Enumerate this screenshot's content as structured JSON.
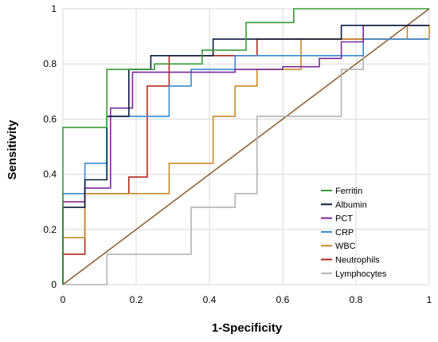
{
  "chart_data": {
    "type": "line",
    "xlabel": "1-Specificity",
    "ylabel": "Sensitivity",
    "xlim": [
      0,
      1
    ],
    "ylim": [
      0,
      1
    ],
    "x_ticks": [
      "0",
      "0.2",
      "0.4",
      "0.6",
      "0.8",
      "1"
    ],
    "y_ticks": [
      "0",
      "0.2",
      "0.4",
      "0.6",
      "0.8",
      "1"
    ],
    "grid": true,
    "legend_position": "bottom-right",
    "series": [
      {
        "name": "Ferritin",
        "color": "#3a9a3a",
        "points": [
          [
            0,
            0
          ],
          [
            0,
            0.57
          ],
          [
            0.12,
            0.57
          ],
          [
            0.12,
            0.78
          ],
          [
            0.25,
            0.78
          ],
          [
            0.25,
            0.8
          ],
          [
            0.38,
            0.8
          ],
          [
            0.38,
            0.85
          ],
          [
            0.5,
            0.85
          ],
          [
            0.5,
            0.95
          ],
          [
            0.63,
            0.95
          ],
          [
            0.63,
            1.0
          ],
          [
            1,
            1.0
          ]
        ]
      },
      {
        "name": "Albumin",
        "color": "#0b1c3a",
        "points": [
          [
            0,
            0
          ],
          [
            0,
            0.28
          ],
          [
            0.06,
            0.28
          ],
          [
            0.06,
            0.38
          ],
          [
            0.12,
            0.38
          ],
          [
            0.12,
            0.61
          ],
          [
            0.18,
            0.61
          ],
          [
            0.18,
            0.78
          ],
          [
            0.24,
            0.78
          ],
          [
            0.24,
            0.83
          ],
          [
            0.41,
            0.83
          ],
          [
            0.41,
            0.89
          ],
          [
            0.76,
            0.89
          ],
          [
            0.76,
            0.94
          ],
          [
            1,
            0.94
          ]
        ]
      },
      {
        "name": "PCT",
        "color": "#7a2a9a",
        "points": [
          [
            0,
            0
          ],
          [
            0,
            0.3
          ],
          [
            0.06,
            0.3
          ],
          [
            0.06,
            0.35
          ],
          [
            0.13,
            0.35
          ],
          [
            0.13,
            0.64
          ],
          [
            0.19,
            0.64
          ],
          [
            0.19,
            0.77
          ],
          [
            0.47,
            0.77
          ],
          [
            0.47,
            0.78
          ],
          [
            0.6,
            0.78
          ],
          [
            0.6,
            0.79
          ],
          [
            0.7,
            0.79
          ],
          [
            0.7,
            0.82
          ],
          [
            0.76,
            0.82
          ],
          [
            0.76,
            0.88
          ],
          [
            0.82,
            0.88
          ],
          [
            0.82,
            0.94
          ],
          [
            1,
            0.94
          ]
        ]
      },
      {
        "name": "CRP",
        "color": "#3a8ad0",
        "points": [
          [
            0,
            0
          ],
          [
            0,
            0.33
          ],
          [
            0.06,
            0.33
          ],
          [
            0.06,
            0.44
          ],
          [
            0.12,
            0.44
          ],
          [
            0.12,
            0.61
          ],
          [
            0.29,
            0.61
          ],
          [
            0.29,
            0.72
          ],
          [
            0.35,
            0.72
          ],
          [
            0.35,
            0.78
          ],
          [
            0.47,
            0.78
          ],
          [
            0.47,
            0.83
          ],
          [
            0.82,
            0.83
          ],
          [
            0.82,
            0.89
          ],
          [
            1,
            0.89
          ]
        ]
      },
      {
        "name": "WBC",
        "color": "#c88a2a",
        "points": [
          [
            0,
            0
          ],
          [
            0,
            0.17
          ],
          [
            0.06,
            0.17
          ],
          [
            0.06,
            0.33
          ],
          [
            0.29,
            0.33
          ],
          [
            0.29,
            0.44
          ],
          [
            0.41,
            0.44
          ],
          [
            0.41,
            0.61
          ],
          [
            0.47,
            0.61
          ],
          [
            0.47,
            0.72
          ],
          [
            0.53,
            0.72
          ],
          [
            0.53,
            0.78
          ],
          [
            0.65,
            0.78
          ],
          [
            0.65,
            0.89
          ],
          [
            0.94,
            0.89
          ],
          [
            0.94,
            0.94
          ],
          [
            1,
            0.94
          ],
          [
            1,
            0.89
          ]
        ]
      },
      {
        "name": "Neutrophils",
        "color": "#b02a20",
        "points": [
          [
            0,
            0
          ],
          [
            0,
            0.11
          ],
          [
            0.06,
            0.11
          ],
          [
            0.06,
            0.33
          ],
          [
            0.18,
            0.33
          ],
          [
            0.18,
            0.39
          ],
          [
            0.23,
            0.39
          ],
          [
            0.23,
            0.72
          ],
          [
            0.29,
            0.72
          ],
          [
            0.29,
            0.83
          ],
          [
            0.53,
            0.83
          ],
          [
            0.53,
            0.89
          ],
          [
            1,
            0.89
          ]
        ]
      },
      {
        "name": "Lymphocytes",
        "color": "#b4b4b4",
        "points": [
          [
            0,
            0
          ],
          [
            0.12,
            0
          ],
          [
            0.12,
            0.11
          ],
          [
            0.35,
            0.11
          ],
          [
            0.35,
            0.28
          ],
          [
            0.47,
            0.28
          ],
          [
            0.47,
            0.33
          ],
          [
            0.53,
            0.33
          ],
          [
            0.53,
            0.61
          ],
          [
            0.76,
            0.61
          ],
          [
            0.76,
            0.78
          ],
          [
            0.82,
            0.78
          ],
          [
            0.82,
            0.94
          ],
          [
            1,
            0.94
          ]
        ]
      }
    ],
    "reference_line": {
      "color": "#8b5a2b",
      "points": [
        [
          0,
          0
        ],
        [
          1,
          1
        ]
      ]
    }
  }
}
